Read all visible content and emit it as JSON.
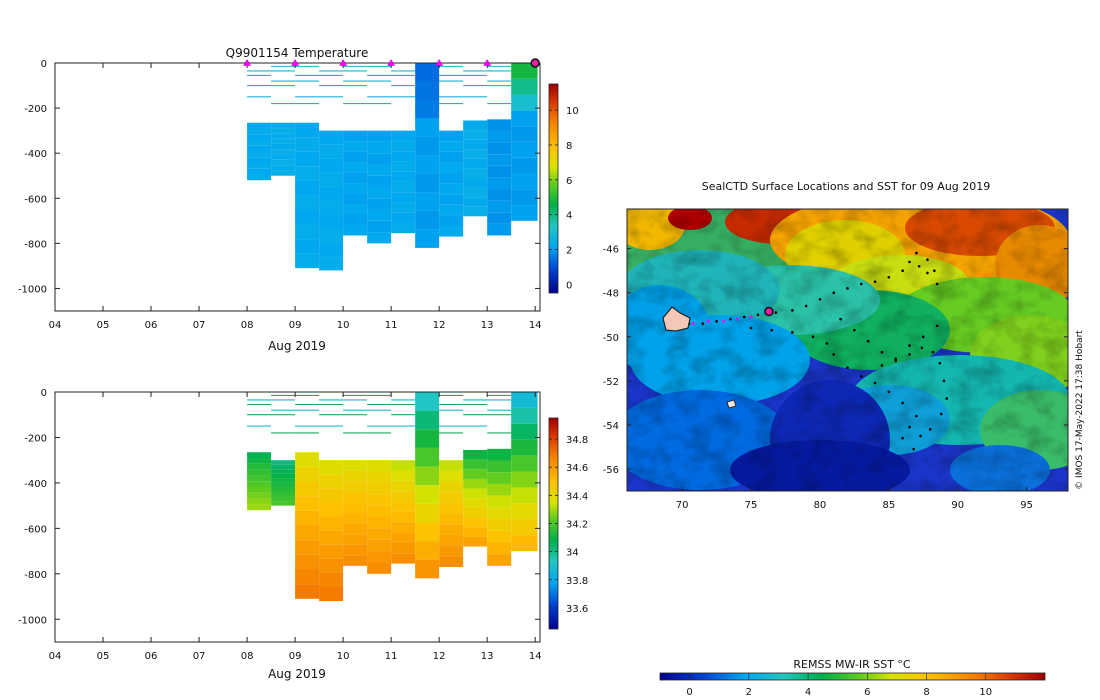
{
  "credit": "© IMOS 17-May-2022 17:38 Hobart",
  "chart_data": [
    {
      "type": "heatmap",
      "title": "Q9901154  Temperature",
      "xlabel": "Aug 2019",
      "x_tick_labels": [
        "04",
        "05",
        "06",
        "07",
        "08",
        "09",
        "10",
        "11",
        "12",
        "13",
        "14"
      ],
      "x_ticks": [
        4,
        5,
        6,
        7,
        8,
        9,
        10,
        11,
        12,
        13,
        14
      ],
      "xlim": [
        4,
        14.1
      ],
      "ylim": [
        -1100,
        0
      ],
      "y_ticks": [
        0,
        -200,
        -400,
        -600,
        -800,
        -1000
      ],
      "colorbar": {
        "ticks": [
          0,
          2,
          4,
          6,
          8,
          10
        ],
        "range": [
          -0.5,
          11.5
        ]
      },
      "marker_days": [
        8,
        9,
        10,
        11,
        12,
        13
      ],
      "current_position_day": 14,
      "profiles": [
        {
          "day": 8.0,
          "w": 0.5,
          "top": -265,
          "bottom": -520,
          "value": 2.2
        },
        {
          "day": 8.5,
          "w": 0.5,
          "top": -265,
          "bottom": -500,
          "value": 2.3
        },
        {
          "day": 9.0,
          "w": 0.5,
          "top": -265,
          "bottom": -910,
          "value": 2.2
        },
        {
          "day": 9.5,
          "w": 0.5,
          "top": -300,
          "bottom": -920,
          "value": 2.2
        },
        {
          "day": 10.0,
          "w": 0.5,
          "top": -300,
          "bottom": -765,
          "value": 2.1
        },
        {
          "day": 10.5,
          "w": 0.5,
          "top": -300,
          "bottom": -800,
          "value": 2.1
        },
        {
          "day": 11.0,
          "w": 0.5,
          "top": -300,
          "bottom": -755,
          "value": 2.2
        },
        {
          "day": 11.5,
          "w": 0.5,
          "top": 0,
          "bottom": -820,
          "value": 2.0
        },
        {
          "day": 12.0,
          "w": 0.5,
          "top": -300,
          "bottom": -770,
          "value": 2.1
        },
        {
          "day": 12.5,
          "w": 0.5,
          "top": -255,
          "bottom": -680,
          "value": 2.3
        },
        {
          "day": 13.0,
          "w": 0.5,
          "top": -250,
          "bottom": -765,
          "value": 1.9
        },
        {
          "day": 13.5,
          "w": 0.55,
          "top": 0,
          "bottom": -700,
          "value": 2.0
        }
      ]
    },
    {
      "type": "heatmap",
      "title": "",
      "xlabel": "Aug 2019",
      "x_tick_labels": [
        "04",
        "05",
        "06",
        "07",
        "08",
        "09",
        "10",
        "11",
        "12",
        "13",
        "14"
      ],
      "x_ticks": [
        4,
        5,
        6,
        7,
        8,
        9,
        10,
        11,
        12,
        13,
        14
      ],
      "xlim": [
        4,
        14.1
      ],
      "ylim": [
        -1100,
        0
      ],
      "y_ticks": [
        0,
        -200,
        -400,
        -600,
        -800,
        -1000
      ],
      "colorbar": {
        "ticks": [
          33.6,
          33.8,
          34,
          34.2,
          34.4,
          34.6,
          34.8
        ],
        "tick_labels": [
          "33.6",
          "33.8",
          "34",
          "34.2",
          "34.4",
          "34.6",
          "34.8"
        ],
        "range": [
          33.45,
          34.95
        ]
      },
      "profiles": [
        {
          "day": 8.0,
          "w": 0.5,
          "top": -265,
          "bottom": -520,
          "surface": 34.05,
          "deep": 34.3
        },
        {
          "day": 8.5,
          "w": 0.5,
          "top": -300,
          "bottom": -500,
          "surface": 34.0,
          "deep": 34.2
        },
        {
          "day": 9.0,
          "w": 0.5,
          "top": -265,
          "bottom": -910,
          "surface": 34.35,
          "deep": 34.7
        },
        {
          "day": 9.5,
          "w": 0.5,
          "top": -300,
          "bottom": -920,
          "surface": 34.35,
          "deep": 34.7
        },
        {
          "day": 10.0,
          "w": 0.5,
          "top": -300,
          "bottom": -765,
          "surface": 34.35,
          "deep": 34.65
        },
        {
          "day": 10.5,
          "w": 0.5,
          "top": -300,
          "bottom": -800,
          "surface": 34.35,
          "deep": 34.65
        },
        {
          "day": 11.0,
          "w": 0.5,
          "top": -300,
          "bottom": -755,
          "surface": 34.3,
          "deep": 34.65
        },
        {
          "day": 11.5,
          "w": 0.5,
          "top": 0,
          "bottom": -820,
          "surface": 33.85,
          "deep": 34.65
        },
        {
          "day": 12.0,
          "w": 0.5,
          "top": -300,
          "bottom": -770,
          "surface": 34.3,
          "deep": 34.65
        },
        {
          "day": 12.5,
          "w": 0.5,
          "top": -255,
          "bottom": -680,
          "surface": 34.05,
          "deep": 34.6
        },
        {
          "day": 13.0,
          "w": 0.5,
          "top": -250,
          "bottom": -765,
          "surface": 34.05,
          "deep": 34.6
        },
        {
          "day": 13.5,
          "w": 0.55,
          "top": 0,
          "bottom": -700,
          "surface": 33.8,
          "deep": 34.55
        }
      ]
    },
    {
      "type": "heatmap",
      "title": "SealCTD Surface Locations and SST for 09 Aug 2019",
      "xlabel": "",
      "ylabel": "",
      "xlim": [
        66,
        98
      ],
      "ylim": [
        -57,
        -44.2
      ],
      "x_ticks": [
        70,
        75,
        80,
        85,
        90,
        95
      ],
      "y_ticks": [
        -46,
        -48,
        -50,
        -52,
        -54,
        -56
      ],
      "colorbar": {
        "label": "REMSS MW-IR SST °C",
        "ticks": [
          0,
          2,
          4,
          6,
          8,
          10
        ],
        "range": [
          -1,
          12
        ]
      },
      "track_points": [
        [
          69.5,
          -49.3
        ],
        [
          70.5,
          -49.4
        ],
        [
          71.5,
          -49.4
        ],
        [
          72.5,
          -49.3
        ],
        [
          73.5,
          -49.2
        ],
        [
          74.5,
          -49.1
        ],
        [
          75.5,
          -49.0
        ],
        [
          76.8,
          -48.9
        ],
        [
          78,
          -48.8
        ],
        [
          79,
          -48.6
        ],
        [
          80,
          -48.3
        ],
        [
          81,
          -48.0
        ],
        [
          82,
          -47.8
        ],
        [
          83,
          -47.6
        ],
        [
          84,
          -47.5
        ],
        [
          85,
          -47.3
        ],
        [
          86,
          -47.0
        ],
        [
          86.5,
          -46.6
        ],
        [
          87,
          -46.2
        ],
        [
          87.8,
          -46.5
        ],
        [
          88.3,
          -47.0
        ],
        [
          88.5,
          -47.6
        ],
        [
          87.8,
          -47.1
        ],
        [
          87.2,
          -46.8
        ],
        [
          75,
          -49.6
        ],
        [
          76.5,
          -49.7
        ],
        [
          78,
          -49.8
        ],
        [
          79.5,
          -50.0
        ],
        [
          80.5,
          -50.3
        ],
        [
          81,
          -50.8
        ],
        [
          82,
          -51.4
        ],
        [
          83,
          -51.8
        ],
        [
          84,
          -52.1
        ],
        [
          85,
          -52.5
        ],
        [
          86,
          -53.0
        ],
        [
          87,
          -53.6
        ],
        [
          86.5,
          -54.1
        ],
        [
          86,
          -54.6
        ],
        [
          86.8,
          -55.1
        ],
        [
          87.3,
          -54.5
        ],
        [
          88,
          -54.2
        ],
        [
          88.8,
          -53.5
        ],
        [
          89.2,
          -52.8
        ],
        [
          89,
          -52.0
        ],
        [
          88.7,
          -51.2
        ],
        [
          88.2,
          -50.7
        ],
        [
          87.4,
          -50.5
        ],
        [
          86.5,
          -50.8
        ],
        [
          85.5,
          -51.1
        ],
        [
          84.5,
          -51.3
        ],
        [
          81.5,
          -49.2
        ],
        [
          82.5,
          -49.7
        ],
        [
          83.5,
          -50.2
        ],
        [
          84.5,
          -50.7
        ],
        [
          85.5,
          -51.0
        ],
        [
          86.5,
          -50.4
        ],
        [
          87.5,
          -50.0
        ],
        [
          88.5,
          -49.5
        ]
      ],
      "magenta_points": [
        [
          70.8,
          -49.4
        ],
        [
          71.9,
          -49.3
        ],
        [
          73.0,
          -49.3
        ],
        [
          74.0,
          -49.2
        ],
        [
          75.0,
          -49.1
        ]
      ],
      "current_position": [
        76.3,
        -48.85
      ]
    }
  ]
}
